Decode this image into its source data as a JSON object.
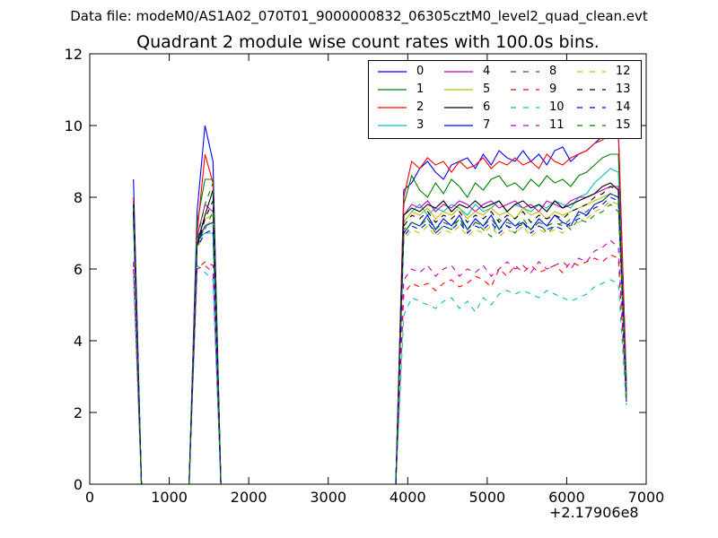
{
  "suptitle": "Data file: modeM0/AS1A02_070T01_9000000832_06305cztM0_level2_quad_clean.evt",
  "chart_data": {
    "type": "line",
    "title": "Quadrant 2 module wise count rates with 100.0s bins.",
    "xlabel": "",
    "ylabel": "",
    "x_offset_label": "+2.17906e8",
    "xlim": [
      0,
      7000
    ],
    "ylim": [
      0,
      12
    ],
    "xticks": [
      0,
      1000,
      2000,
      3000,
      4000,
      5000,
      6000,
      7000
    ],
    "yticks": [
      0,
      2,
      4,
      6,
      8,
      10,
      12
    ],
    "grid": false,
    "legend_position": "upper right",
    "legend_columns": 4,
    "x": [
      550,
      650,
      1250,
      1350,
      1450,
      1550,
      1650,
      1750,
      3850,
      3950,
      4050,
      4150,
      4250,
      4350,
      4450,
      4550,
      4650,
      4750,
      4850,
      4950,
      5050,
      5150,
      5250,
      5350,
      5450,
      5550,
      5650,
      5750,
      5850,
      5950,
      6050,
      6150,
      6250,
      6350,
      6450,
      6550,
      6650,
      6750
    ],
    "series": [
      {
        "name": "0",
        "color": "#0000ff",
        "dash": "solid",
        "values": [
          8.5,
          0,
          0,
          7.6,
          10.0,
          9.0,
          0,
          0,
          0,
          8.2,
          8.4,
          8.8,
          9.0,
          8.7,
          8.5,
          8.9,
          9.0,
          9.1,
          8.8,
          9.2,
          8.9,
          9.3,
          9.1,
          9.0,
          9.3,
          9.0,
          9.2,
          8.9,
          9.3,
          9.4,
          9.0,
          9.2,
          9.3,
          9.5,
          9.7,
          9.8,
          9.8,
          2.8
        ]
      },
      {
        "name": "1",
        "color": "#008000",
        "dash": "solid",
        "values": [
          7.9,
          0,
          0,
          7.3,
          8.5,
          8.5,
          0,
          0,
          0,
          7.8,
          8.6,
          8.2,
          8.0,
          8.4,
          8.1,
          8.5,
          8.3,
          8.0,
          8.4,
          8.2,
          8.5,
          8.6,
          8.3,
          8.4,
          8.2,
          8.5,
          8.3,
          8.6,
          8.4,
          8.5,
          8.3,
          8.6,
          8.7,
          8.9,
          9.1,
          9.2,
          9.2,
          2.6
        ]
      },
      {
        "name": "2",
        "color": "#ff0000",
        "dash": "solid",
        "values": [
          8.0,
          0,
          0,
          7.0,
          9.2,
          8.4,
          0,
          0,
          0,
          8.0,
          9.0,
          8.8,
          9.1,
          8.9,
          9.0,
          8.7,
          9.0,
          8.8,
          8.9,
          9.1,
          8.8,
          9.0,
          8.9,
          9.1,
          8.9,
          9.0,
          8.8,
          9.2,
          9.0,
          8.9,
          9.1,
          9.2,
          9.3,
          9.5,
          9.6,
          9.8,
          9.9,
          2.9
        ]
      },
      {
        "name": "3",
        "color": "#00bfbf",
        "dash": "solid",
        "values": [
          7.7,
          0,
          0,
          6.8,
          7.0,
          7.0,
          0,
          0,
          0,
          7.3,
          7.6,
          7.8,
          7.5,
          7.7,
          7.6,
          7.8,
          7.7,
          7.5,
          7.8,
          7.6,
          7.7,
          7.9,
          7.6,
          7.8,
          7.7,
          7.6,
          7.8,
          7.7,
          7.9,
          7.8,
          7.7,
          8.0,
          8.1,
          8.4,
          8.6,
          8.8,
          8.7,
          2.7
        ]
      },
      {
        "name": "4",
        "color": "#bf00bf",
        "dash": "solid",
        "values": [
          7.6,
          0,
          0,
          6.9,
          7.8,
          7.6,
          0,
          0,
          0,
          7.5,
          7.8,
          7.7,
          7.9,
          7.6,
          7.8,
          7.7,
          7.9,
          7.8,
          7.6,
          7.8,
          7.9,
          7.7,
          7.8,
          7.9,
          7.7,
          7.8,
          7.6,
          7.9,
          7.8,
          7.7,
          7.9,
          8.0,
          8.0,
          8.1,
          8.2,
          8.3,
          8.3,
          2.6
        ]
      },
      {
        "name": "5",
        "color": "#bfbf00",
        "dash": "solid",
        "values": [
          7.5,
          0,
          0,
          6.8,
          7.4,
          7.5,
          0,
          0,
          0,
          7.3,
          7.6,
          7.5,
          7.7,
          7.4,
          7.6,
          7.5,
          7.7,
          7.4,
          7.6,
          7.5,
          7.7,
          7.5,
          7.6,
          7.4,
          7.7,
          7.5,
          7.6,
          7.4,
          7.6,
          7.5,
          7.6,
          7.7,
          7.8,
          7.9,
          8.0,
          8.1,
          8.0,
          2.5
        ]
      },
      {
        "name": "6",
        "color": "#000000",
        "dash": "solid",
        "values": [
          7.8,
          0,
          0,
          6.7,
          7.5,
          8.2,
          0,
          0,
          0,
          7.5,
          7.7,
          7.6,
          7.8,
          7.7,
          7.9,
          7.6,
          7.8,
          7.7,
          7.9,
          7.7,
          7.8,
          7.9,
          7.6,
          7.8,
          7.9,
          7.7,
          7.8,
          7.6,
          7.9,
          7.7,
          7.8,
          7.9,
          8.0,
          8.1,
          8.3,
          8.4,
          8.2,
          2.5
        ]
      },
      {
        "name": "7",
        "color": "#0000ff",
        "dash": "solid",
        "values": [
          7.4,
          0,
          0,
          6.7,
          7.2,
          7.3,
          0,
          0,
          0,
          7.0,
          7.3,
          7.2,
          7.5,
          7.1,
          7.4,
          7.2,
          7.5,
          7.1,
          7.4,
          7.2,
          7.5,
          7.1,
          7.4,
          7.2,
          7.3,
          7.1,
          7.4,
          7.2,
          7.5,
          7.3,
          7.2,
          7.6,
          7.5,
          7.8,
          7.9,
          8.1,
          8.0,
          2.4
        ]
      },
      {
        "name": "8",
        "color": "#008000",
        "dash": "dashed",
        "values": [
          7.7,
          0,
          0,
          6.8,
          7.8,
          8.4,
          0,
          0,
          0,
          7.1,
          7.3,
          7.2,
          7.4,
          7.0,
          7.2,
          7.1,
          7.4,
          7.0,
          7.3,
          7.1,
          6.9,
          7.4,
          7.2,
          7.0,
          7.3,
          7.1,
          7.3,
          7.0,
          7.2,
          7.3,
          7.1,
          7.4,
          7.3,
          7.5,
          7.6,
          7.8,
          7.6,
          2.4
        ]
      },
      {
        "name": "9",
        "color": "#ff0000",
        "dash": "dashed",
        "values": [
          6.0,
          0,
          0,
          6.0,
          6.2,
          6.1,
          0,
          0,
          0,
          5.3,
          5.6,
          5.5,
          5.6,
          5.4,
          5.6,
          5.7,
          5.5,
          5.6,
          5.8,
          5.7,
          5.5,
          6.0,
          5.8,
          6.1,
          5.9,
          6.1,
          5.9,
          6.0,
          6.1,
          5.9,
          6.2,
          6.1,
          6.2,
          6.3,
          6.2,
          6.4,
          6.3,
          2.3
        ]
      },
      {
        "name": "10",
        "color": "#00bfbf",
        "dash": "dashed",
        "values": [
          5.8,
          0,
          0,
          6.1,
          5.9,
          5.7,
          0,
          0,
          0,
          4.7,
          5.2,
          5.1,
          5.0,
          4.9,
          5.1,
          5.2,
          4.9,
          5.1,
          4.8,
          5.2,
          5.0,
          5.3,
          5.4,
          5.3,
          5.4,
          5.3,
          5.2,
          5.4,
          5.3,
          5.2,
          5.1,
          5.2,
          5.3,
          5.5,
          5.6,
          5.7,
          5.6,
          2.2
        ]
      },
      {
        "name": "11",
        "color": "#bf00bf",
        "dash": "dashed",
        "values": [
          6.2,
          0,
          0,
          6.0,
          6.1,
          5.9,
          0,
          0,
          0,
          5.7,
          6.0,
          5.9,
          6.1,
          5.8,
          6.0,
          6.1,
          5.8,
          6.0,
          5.9,
          6.1,
          5.8,
          6.0,
          6.2,
          6.0,
          6.1,
          5.9,
          6.2,
          6.0,
          6.1,
          6.2,
          6.0,
          6.3,
          6.2,
          6.5,
          6.6,
          6.8,
          6.6,
          2.4
        ]
      },
      {
        "name": "12",
        "color": "#bfbf00",
        "dash": "dashed",
        "values": [
          7.3,
          0,
          0,
          6.5,
          7.2,
          7.4,
          0,
          0,
          0,
          6.8,
          7.1,
          7.0,
          7.2,
          6.9,
          7.1,
          7.0,
          7.2,
          6.9,
          7.1,
          7.0,
          7.2,
          6.9,
          7.1,
          7.0,
          7.2,
          6.9,
          7.1,
          7.0,
          7.1,
          7.0,
          7.2,
          7.3,
          7.4,
          7.6,
          7.7,
          7.9,
          7.8,
          2.3
        ]
      },
      {
        "name": "13",
        "color": "#000000",
        "dash": "dashed",
        "values": [
          7.6,
          0,
          0,
          6.6,
          7.4,
          7.9,
          0,
          0,
          0,
          7.2,
          7.5,
          7.4,
          7.6,
          7.3,
          7.5,
          7.4,
          7.6,
          7.3,
          7.5,
          7.4,
          7.6,
          7.3,
          7.5,
          7.4,
          7.6,
          7.3,
          7.5,
          7.4,
          7.5,
          7.4,
          7.6,
          7.7,
          7.8,
          8.0,
          8.1,
          8.3,
          8.2,
          2.4
        ]
      },
      {
        "name": "14",
        "color": "#0000ff",
        "dash": "dashed",
        "values": [
          7.5,
          0,
          0,
          6.6,
          7.0,
          7.1,
          0,
          0,
          0,
          6.9,
          7.2,
          7.1,
          7.3,
          7.0,
          7.2,
          7.1,
          7.3,
          7.0,
          7.2,
          7.1,
          7.3,
          7.0,
          7.2,
          7.1,
          7.3,
          7.0,
          7.2,
          7.1,
          7.2,
          7.1,
          7.3,
          7.4,
          7.5,
          7.7,
          7.8,
          8.0,
          7.9,
          2.3
        ]
      },
      {
        "name": "15",
        "color": "#008000",
        "dash": "dashed",
        "values": [
          7.4,
          0,
          0,
          6.7,
          7.1,
          7.6,
          0,
          0,
          0,
          7.0,
          7.3,
          7.2,
          7.4,
          7.1,
          7.3,
          7.2,
          7.4,
          7.1,
          7.3,
          7.2,
          7.4,
          7.1,
          7.3,
          7.2,
          7.4,
          7.1,
          7.3,
          7.2,
          7.3,
          7.2,
          7.4,
          7.5,
          7.6,
          7.8,
          7.9,
          8.1,
          8.0,
          2.4
        ]
      }
    ]
  }
}
